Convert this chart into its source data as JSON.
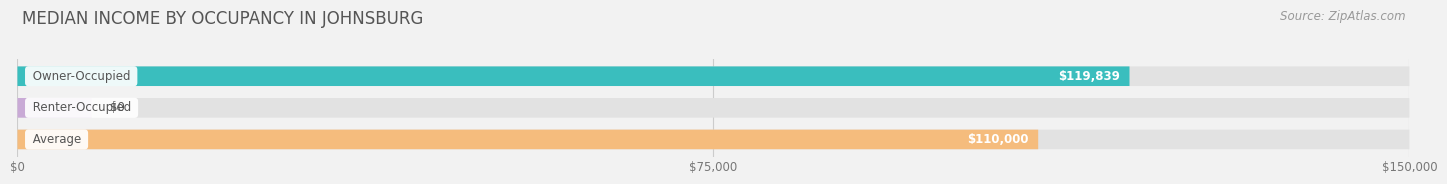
{
  "title": "MEDIAN INCOME BY OCCUPANCY IN JOHNSBURG",
  "source": "Source: ZipAtlas.com",
  "categories": [
    "Owner-Occupied",
    "Renter-Occupied",
    "Average"
  ],
  "values": [
    119839,
    0,
    110000
  ],
  "bar_colors": [
    "#3abebe",
    "#c9aad6",
    "#f5bc7d"
  ],
  "bar_labels": [
    "$119,839",
    "$0",
    "$110,000"
  ],
  "xlim": [
    0,
    150000
  ],
  "xticks": [
    0,
    75000,
    150000
  ],
  "xtick_labels": [
    "$0",
    "$75,000",
    "$150,000"
  ],
  "background_color": "#f2f2f2",
  "bar_bg_color": "#e2e2e2",
  "title_fontsize": 12,
  "label_fontsize": 8.5,
  "source_fontsize": 8.5,
  "bar_height": 0.62,
  "renter_bar_width": 8000
}
